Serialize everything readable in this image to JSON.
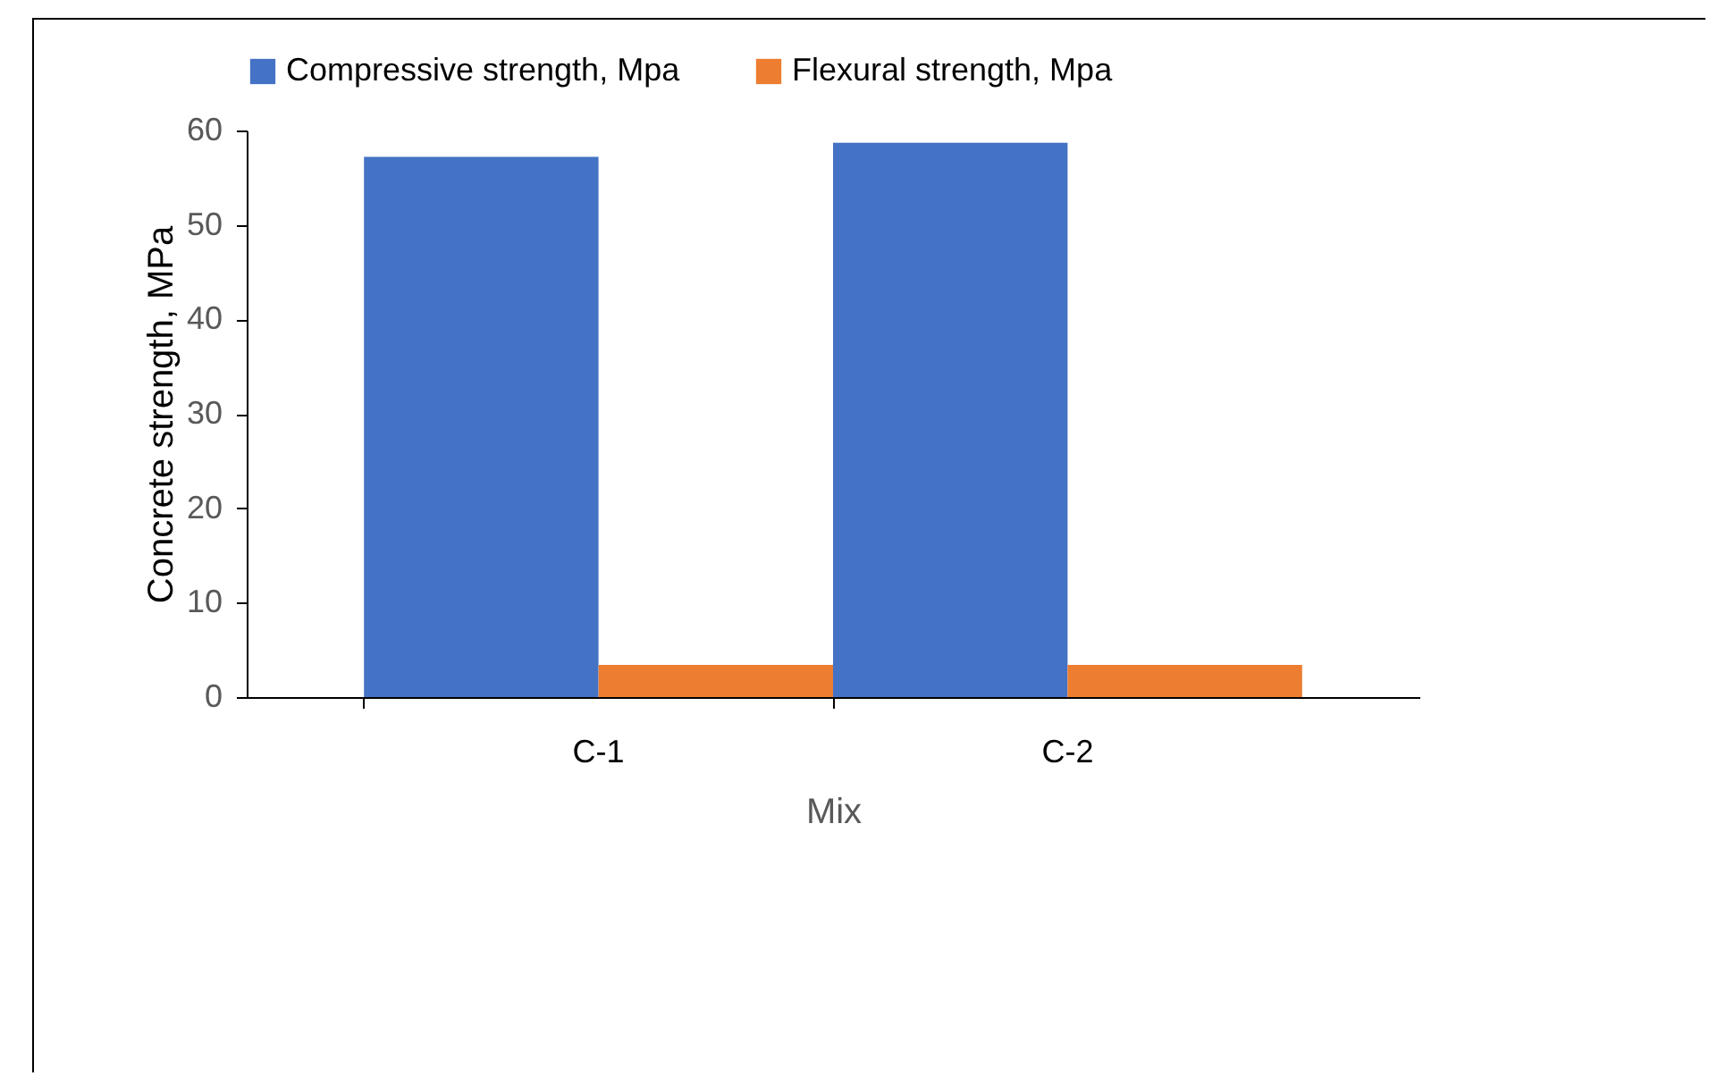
{
  "chart_data": {
    "type": "bar",
    "xlabel": "Mix",
    "ylabel": "Concrete strength, MPa",
    "categories": [
      "C-1",
      "C-2"
    ],
    "series": [
      {
        "name": "Compressive strength, Mpa",
        "color": "#4472c4",
        "values": [
          57.2,
          58.7
        ]
      },
      {
        "name": "Flexural strength, Mpa",
        "color": "#ed7d31",
        "values": [
          3.4,
          3.4
        ]
      }
    ],
    "ylim": [
      0,
      60
    ],
    "yticks": [
      0,
      10,
      20,
      30,
      40,
      50,
      60
    ],
    "grid": false,
    "legend": "top"
  }
}
